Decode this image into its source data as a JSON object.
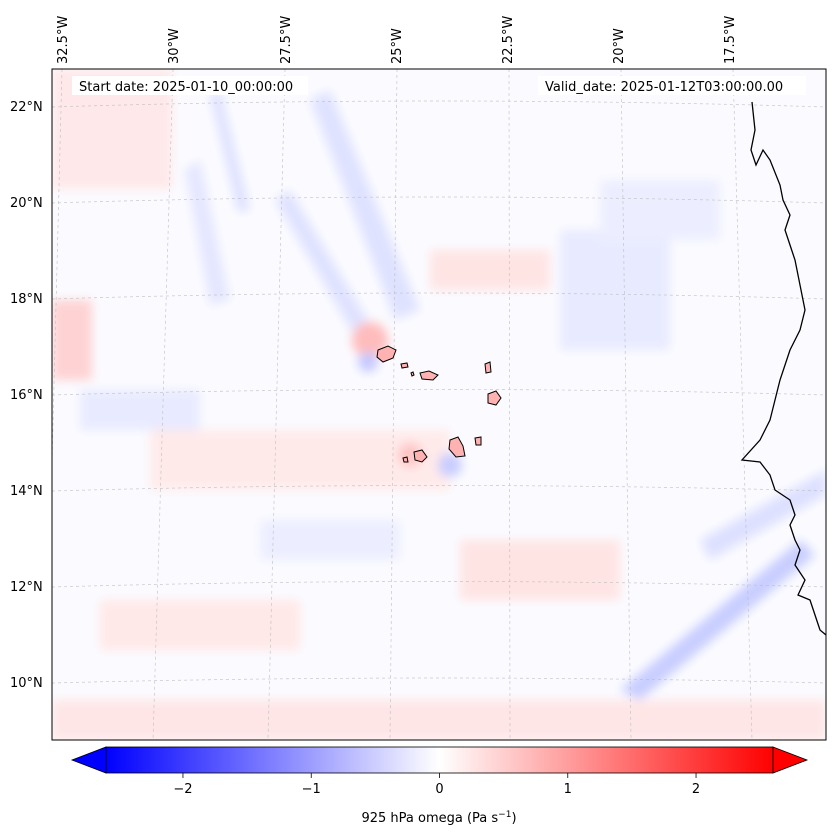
{
  "map": {
    "start_label": "Start date: 2025-01-10_00:00:00",
    "valid_label": "Valid_date: 2025-01-12T03:00:00.00",
    "lon_labels": [
      "32.5°W",
      "30°W",
      "27.5°W",
      "25°W",
      "22.5°W",
      "20°W",
      "17.5°W"
    ],
    "lat_labels": [
      "22°N",
      "20°N",
      "18°N",
      "16°N",
      "14°N",
      "12°N",
      "10°N"
    ],
    "features": [
      "Cape Verde islands",
      "West African coastline"
    ],
    "colormap": "bwr",
    "colors": {
      "negative": "#0000ff",
      "zero": "#ffffff",
      "positive": "#ff0000",
      "coast": "#000000",
      "grid": "#bbbbbb"
    }
  },
  "colorbar": {
    "ticks": [
      "−2",
      "−1",
      "0",
      "1",
      "2"
    ],
    "tick_values": [
      -2,
      -1,
      0,
      1,
      2
    ],
    "range": [
      -2.6,
      2.6
    ],
    "label": "925 hPa omega (Pa s",
    "label_exp": "−1",
    "label_close": ")"
  }
}
